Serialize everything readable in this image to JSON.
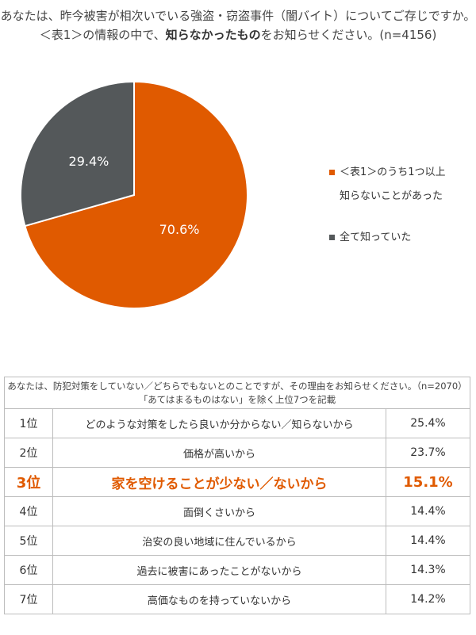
{
  "title": {
    "line1": "あなたは、昨今被害が相次いでいる強盗・窃盗事件（闇バイト）についてご存じですか。",
    "line2_pre": "＜表1＞の情報の中で、",
    "line2_bold": "知らなかったもの",
    "line2_post": "をお知らせください。(n=4156)"
  },
  "chart_data": {
    "type": "pie",
    "slices": [
      {
        "label": "＜表1＞のうち1つ以上知らないことがあった",
        "legend_line1": "＜表1＞のうち1つ以上",
        "legend_line2": "知らないことがあった",
        "value": 70.6,
        "display": "70.6%",
        "color": "#e05a00"
      },
      {
        "label": "全て知っていた",
        "value": 29.4,
        "display": "29.4%",
        "color": "#54585a"
      }
    ],
    "legend_position": "right"
  },
  "survey": {
    "question": "あなたは、防犯対策をしていない／どちらでもないとのことですが、その理由をお知らせください。（n=2070）",
    "note": "「あてはまるものはない」を除く上位7つを記載",
    "highlight_color": "#e05a00",
    "rows": [
      {
        "rank": "1位",
        "reason": "どのような対策をしたら良いか分からない／知らないから",
        "pct": "25.4%"
      },
      {
        "rank": "2位",
        "reason": "価格が高いから",
        "pct": "23.7%"
      },
      {
        "rank": "3位",
        "reason": "家を空けることが少ない／ないから",
        "pct": "15.1%"
      },
      {
        "rank": "4位",
        "reason": "面倒くさいから",
        "pct": "14.4%"
      },
      {
        "rank": "5位",
        "reason": "治安の良い地域に住んでいるから",
        "pct": "14.4%"
      },
      {
        "rank": "6位",
        "reason": "過去に被害にあったことがないから",
        "pct": "14.3%"
      },
      {
        "rank": "7位",
        "reason": "高価なものを持っていないから",
        "pct": "14.2%"
      }
    ]
  }
}
